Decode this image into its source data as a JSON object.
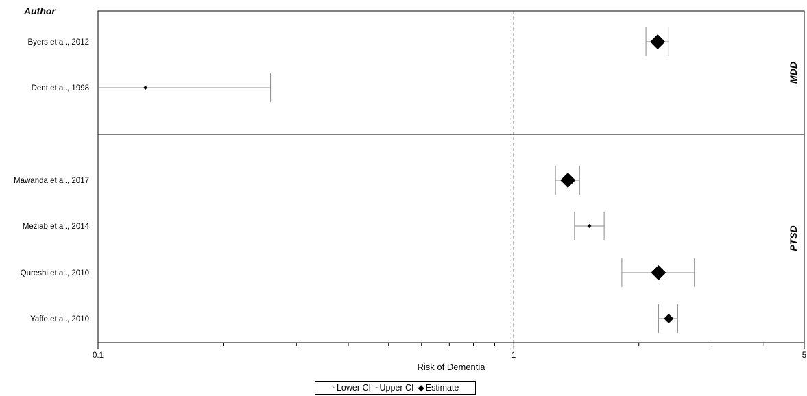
{
  "chart_data": {
    "type": "forest",
    "column_header": "Author",
    "xlabel": "Risk of Dementia",
    "x_scale": "log",
    "xlim": [
      0.1,
      5
    ],
    "x_ticks": [
      0.1,
      1,
      5
    ],
    "x_tick_labels": [
      "0.1",
      "1",
      "5"
    ],
    "reference_line": 1,
    "groups": [
      {
        "name": "MDD",
        "rows": [
          {
            "label": "Byers et al., 2012",
            "estimate": 2.22,
            "lower": 2.08,
            "upper": 2.36,
            "weight": "large"
          },
          {
            "label": "Dent et al., 1998",
            "estimate": 0.13,
            "lower": 0.1,
            "upper": 0.26,
            "weight": "small"
          }
        ]
      },
      {
        "name": "PTSD",
        "rows": [
          {
            "label": "Mawanda et al., 2017",
            "estimate": 1.35,
            "lower": 1.26,
            "upper": 1.44,
            "weight": "large"
          },
          {
            "label": "Meziab et al., 2014",
            "estimate": 1.52,
            "lower": 1.4,
            "upper": 1.65,
            "weight": "small"
          },
          {
            "label": "Qureshi et al., 2010",
            "estimate": 2.23,
            "lower": 1.82,
            "upper": 2.72,
            "weight": "large"
          },
          {
            "label": "Yaffe et al., 2010",
            "estimate": 2.36,
            "lower": 2.23,
            "upper": 2.48,
            "weight": "medium"
          }
        ]
      }
    ],
    "legend": {
      "position": "bottom",
      "items": [
        "Lower CI",
        "Upper CI",
        "Estimate"
      ]
    }
  }
}
